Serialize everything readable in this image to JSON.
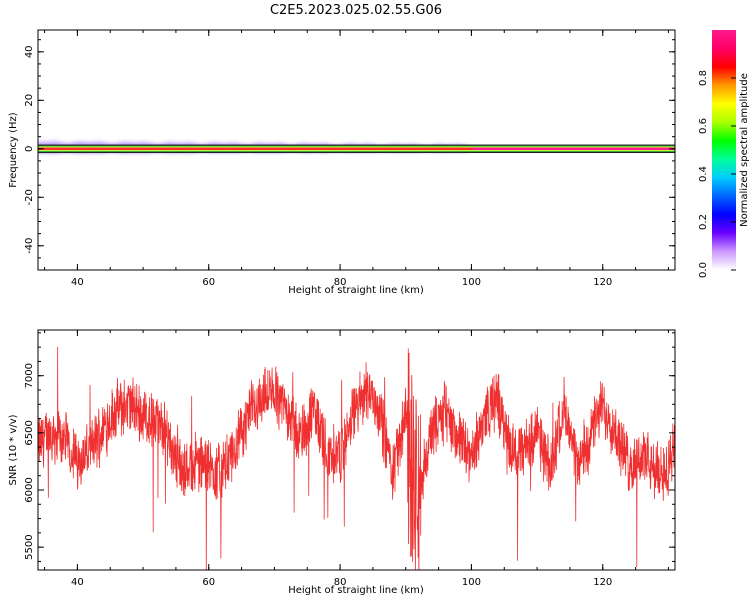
{
  "title": "C2E5.2023.025.02.55.G06",
  "colors": {
    "snr_line": "#f03030",
    "dark_band": "#202020",
    "green_band": "#33cc33",
    "red_center": "#ff2a2a",
    "magenta_center": "#ff1e8c",
    "axis": "#000000"
  },
  "chart_data": [
    {
      "type": "heatmap",
      "title": "C2E5.2023.025.02.55.G06",
      "xlabel": "Height of straight line (km)",
      "ylabel": "Frequency (Hz)",
      "xlim": [
        34,
        131
      ],
      "ylim": [
        -50,
        49
      ],
      "xticks": [
        40,
        60,
        80,
        100,
        120
      ],
      "yticks": [
        40,
        20,
        0,
        -20,
        -40
      ],
      "ytick_labels": [
        "40",
        "20",
        "0",
        "-20",
        "-40"
      ],
      "center_line_freq_hz": 0,
      "band_halfwidth_hz": 1.5,
      "spectral_spread_region_km": [
        34,
        100
      ],
      "colorbar": {
        "label": "Normalized spectral amplitude",
        "ticks": [
          0.0,
          0.2,
          0.4,
          0.6,
          0.8
        ],
        "tick_labels": [
          "0.0",
          "0.2",
          "0.4",
          "0.6",
          "0.8"
        ],
        "range": [
          0,
          1
        ],
        "colors": [
          "#ffffff",
          "#cc99ff",
          "#6a00ff",
          "#0000ff",
          "#0066ff",
          "#00ccff",
          "#00ff99",
          "#00ff00",
          "#aaff00",
          "#ffff00",
          "#ff9900",
          "#ff0000",
          "#ff0066",
          "#ff1a8c"
        ]
      }
    },
    {
      "type": "line",
      "xlabel": "Height of straight line (km)",
      "ylabel": "SNR (10 * v/v)",
      "xlim": [
        34,
        131
      ],
      "ylim": [
        5300,
        7400
      ],
      "xticks": [
        40,
        60,
        80,
        100,
        120
      ],
      "yticks": [
        5500,
        6000,
        6500,
        7000
      ],
      "ytick_labels": [
        "5500",
        "6000",
        "6500",
        "7000"
      ],
      "series": [
        {
          "name": "SNR",
          "x": [
            34,
            36,
            38,
            40,
            42,
            44,
            46,
            48,
            50,
            52,
            54,
            56,
            58,
            60,
            62,
            64,
            66,
            68,
            70,
            72,
            74,
            76,
            78,
            80,
            82,
            84,
            86,
            88,
            90,
            91,
            92,
            94,
            96,
            98,
            100,
            102,
            104,
            106,
            108,
            110,
            112,
            114,
            116,
            118,
            120,
            122,
            124,
            126,
            128,
            130,
            131
          ],
          "values": [
            6400,
            6500,
            6450,
            6250,
            6350,
            6550,
            6700,
            6750,
            6650,
            6600,
            6450,
            6150,
            6250,
            6200,
            6150,
            6350,
            6650,
            6800,
            6850,
            6700,
            6450,
            6700,
            6350,
            6300,
            6650,
            6900,
            6700,
            6150,
            6650,
            6350,
            6000,
            6500,
            6700,
            6450,
            6250,
            6650,
            6800,
            6350,
            6350,
            6500,
            6150,
            6750,
            6200,
            6450,
            6750,
            6500,
            6200,
            6300,
            6150,
            6200,
            6350
          ]
        }
      ]
    }
  ]
}
